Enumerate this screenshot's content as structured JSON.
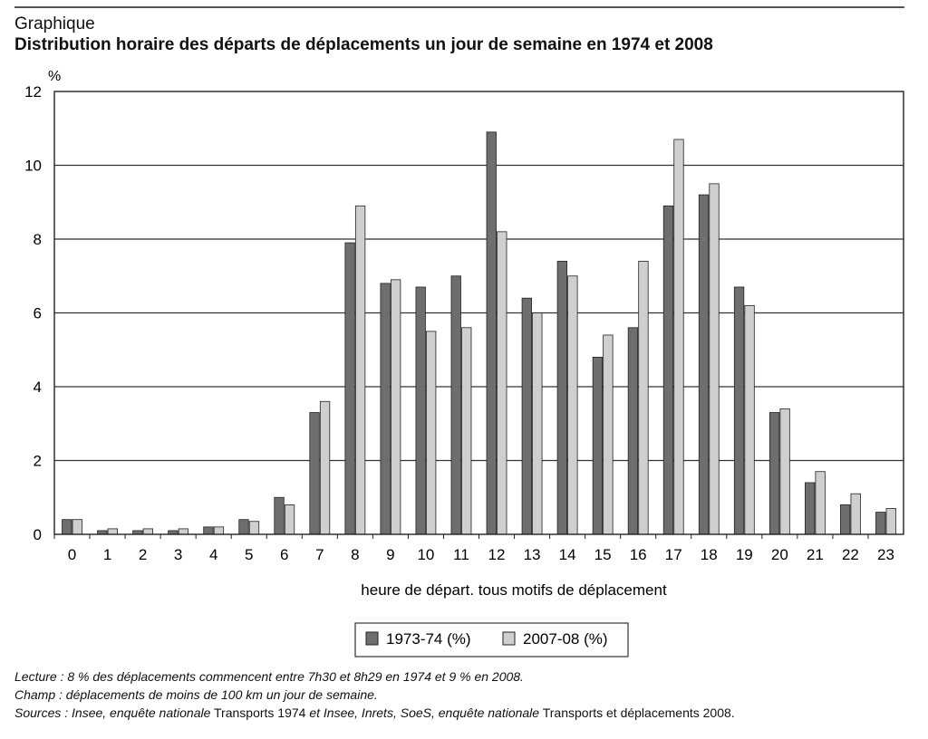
{
  "header": {
    "kicker": "Graphique",
    "title": "Distribution horaire des départs de déplacements un jour de semaine en 1974 et 2008"
  },
  "chart_data": {
    "type": "bar",
    "ylabel": "%",
    "xlabel": "heure de départ. tous motifs de déplacement",
    "ylim": [
      0,
      12
    ],
    "yticks": [
      0,
      2,
      4,
      6,
      8,
      10,
      12
    ],
    "grid": true,
    "legend_position": "bottom-center",
    "categories": [
      "0",
      "1",
      "2",
      "3",
      "4",
      "5",
      "6",
      "7",
      "8",
      "9",
      "10",
      "11",
      "12",
      "13",
      "14",
      "15",
      "16",
      "17",
      "18",
      "19",
      "20",
      "21",
      "22",
      "23"
    ],
    "series": [
      {
        "name": "1973-74 (%)",
        "color": "#6e6e6e",
        "values": [
          0.4,
          0.1,
          0.1,
          0.1,
          0.2,
          0.4,
          1.0,
          3.3,
          7.9,
          6.8,
          6.7,
          7.0,
          10.9,
          6.4,
          7.4,
          4.8,
          5.6,
          8.9,
          9.2,
          6.7,
          3.3,
          1.4,
          0.8,
          0.6
        ]
      },
      {
        "name": "2007-08 (%)",
        "color": "#cfcfcf",
        "values": [
          0.4,
          0.15,
          0.15,
          0.15,
          0.2,
          0.35,
          0.8,
          3.6,
          8.9,
          6.9,
          5.5,
          5.6,
          8.2,
          6.0,
          7.0,
          5.4,
          7.4,
          10.7,
          9.5,
          6.2,
          3.4,
          1.7,
          1.1,
          0.7
        ]
      }
    ]
  },
  "notes": {
    "lecture_label": "Lecture :",
    "lecture_text": " 8 % des déplacements commencent entre 7h30 et 8h29 en 1974 et 9 % en 2008.",
    "champ_label": "Champ :",
    "champ_text": " déplacements de moins de 100 km un jour de semaine.",
    "sources_1": "Sources : Insee, enquête nationale",
    "sources_2": " Transports 1974 ",
    "sources_3": "et Insee, Inrets, SoeS, enquête nationale",
    "sources_4": " Transports et déplacements 2008."
  }
}
